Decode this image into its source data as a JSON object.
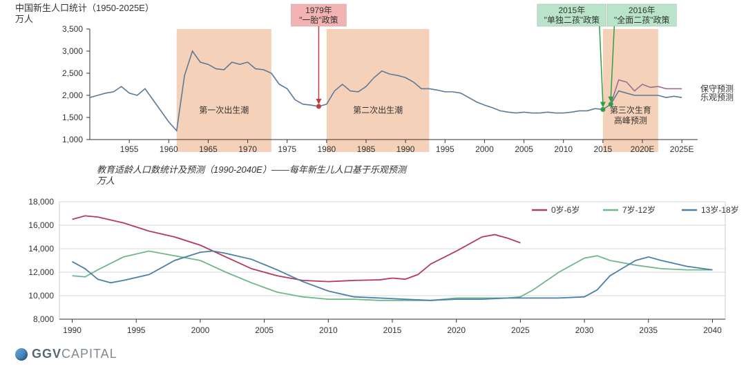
{
  "chart1": {
    "type": "line",
    "title": "中国新生人口统计（1950-2025E）",
    "y_unit": "万人",
    "title_fontsize": 13,
    "label_fontsize": 12,
    "background_color": "#ffffff",
    "axis_color": "#333333",
    "line_color": "#5a7a99",
    "line_width": 1.6,
    "shade_color": "#f3ccb0",
    "shade_opacity": 0.9,
    "xlim": [
      1950,
      2027
    ],
    "ylim": [
      1000,
      3500
    ],
    "xtick_start": 1955,
    "xtick_step": 5,
    "xtick_end": 2025,
    "xtick_suffix_e_from": 2020,
    "ytick_start": 1000,
    "ytick_step": 500,
    "ytick_end": 3500,
    "shaded_periods": [
      {
        "start": 1961,
        "end": 1973,
        "label": "第一次出生潮"
      },
      {
        "start": 1980,
        "end": 1993,
        "label": "第二次出生潮"
      },
      {
        "start": 2015,
        "end": 2022,
        "label": "第三次生育\n高峰预测"
      }
    ],
    "callouts": [
      {
        "year": 1979,
        "label1": "1979年",
        "label2": "\"一胎\"政策",
        "box_color": "#f3b3b3",
        "arrow_color": "#c43c3c",
        "dot_color": "#c43c3c"
      },
      {
        "year": 2015,
        "label1": "2015年",
        "label2": "\"单独二孩\"政策",
        "box_color": "#b9e4c9",
        "arrow_color": "#2f9e44",
        "dot_color": "#2f9e44"
      },
      {
        "year": 2016,
        "label1": "2016年",
        "label2": "\"全面二孩\"政策",
        "box_color": "#b9e4c9",
        "arrow_color": "#2f9e44",
        "dot_color": "#2f9e44"
      }
    ],
    "end_labels": [
      {
        "text": "保守预测",
        "y": 2150
      },
      {
        "text": "乐观预测",
        "y": 1950
      }
    ],
    "series_main": [
      [
        1950,
        1950
      ],
      [
        1951,
        2000
      ],
      [
        1952,
        2050
      ],
      [
        1953,
        2080
      ],
      [
        1954,
        2200
      ],
      [
        1955,
        2050
      ],
      [
        1956,
        2000
      ],
      [
        1957,
        2150
      ],
      [
        1958,
        1900
      ],
      [
        1959,
        1650
      ],
      [
        1960,
        1400
      ],
      [
        1961,
        1200
      ],
      [
        1962,
        2450
      ],
      [
        1963,
        3000
      ],
      [
        1964,
        2750
      ],
      [
        1965,
        2700
      ],
      [
        1966,
        2600
      ],
      [
        1967,
        2580
      ],
      [
        1968,
        2750
      ],
      [
        1969,
        2700
      ],
      [
        1970,
        2750
      ],
      [
        1971,
        2600
      ],
      [
        1972,
        2580
      ],
      [
        1973,
        2500
      ],
      [
        1974,
        2250
      ],
      [
        1975,
        2150
      ],
      [
        1976,
        1900
      ],
      [
        1977,
        1800
      ],
      [
        1978,
        1780
      ],
      [
        1979,
        1750
      ],
      [
        1980,
        1800
      ],
      [
        1981,
        2100
      ],
      [
        1982,
        2250
      ],
      [
        1983,
        2100
      ],
      [
        1984,
        2080
      ],
      [
        1985,
        2200
      ],
      [
        1986,
        2400
      ],
      [
        1987,
        2550
      ],
      [
        1988,
        2480
      ],
      [
        1989,
        2450
      ],
      [
        1990,
        2400
      ],
      [
        1991,
        2300
      ],
      [
        1992,
        2150
      ],
      [
        1993,
        2150
      ],
      [
        1994,
        2120
      ],
      [
        1995,
        2080
      ],
      [
        1996,
        2080
      ],
      [
        1997,
        2050
      ],
      [
        1998,
        1950
      ],
      [
        1999,
        1850
      ],
      [
        2000,
        1780
      ],
      [
        2001,
        1720
      ],
      [
        2002,
        1650
      ],
      [
        2003,
        1620
      ],
      [
        2004,
        1600
      ],
      [
        2005,
        1620
      ],
      [
        2006,
        1600
      ],
      [
        2007,
        1600
      ],
      [
        2008,
        1620
      ],
      [
        2009,
        1600
      ],
      [
        2010,
        1600
      ],
      [
        2011,
        1620
      ],
      [
        2012,
        1650
      ],
      [
        2013,
        1650
      ],
      [
        2014,
        1700
      ],
      [
        2015,
        1680
      ],
      [
        2016,
        1800
      ]
    ],
    "series_conservative": [
      [
        2016,
        1800
      ],
      [
        2017,
        2350
      ],
      [
        2018,
        2300
      ],
      [
        2019,
        2100
      ],
      [
        2020,
        2250
      ],
      [
        2021,
        2180
      ],
      [
        2022,
        2200
      ],
      [
        2023,
        2150
      ],
      [
        2024,
        2150
      ],
      [
        2025,
        2150
      ]
    ],
    "series_optimistic": [
      [
        2016,
        1800
      ],
      [
        2017,
        2100
      ],
      [
        2018,
        2050
      ],
      [
        2019,
        2000
      ],
      [
        2020,
        2000
      ],
      [
        2021,
        2000
      ],
      [
        2022,
        2000
      ],
      [
        2023,
        1950
      ],
      [
        2024,
        1980
      ],
      [
        2025,
        1950
      ]
    ],
    "conservative_color": "#9c6d8f",
    "optimistic_color": "#5a7a99"
  },
  "chart2": {
    "type": "line",
    "title": "教育适龄人口数统计及预测（1990-2040E）——每年新生儿人口基于乐观预测",
    "y_unit": "万人",
    "title_fontsize": 12,
    "label_fontsize": 12,
    "background_color": "#ffffff",
    "axis_color": "#333333",
    "line_width": 1.8,
    "xlim": [
      1989,
      2041
    ],
    "ylim": [
      8000,
      18000
    ],
    "xtick_start": 1990,
    "xtick_step": 5,
    "xtick_end": 2040,
    "ytick_start": 8000,
    "ytick_step": 2000,
    "ytick_end": 18000,
    "grid_color": "#c7cdd2",
    "legend_items": [
      {
        "name": "0岁-6岁",
        "color": "#b43a5a"
      },
      {
        "name": "7岁-12岁",
        "color": "#6fb78a"
      },
      {
        "name": "13岁-18岁",
        "color": "#4a7fa6"
      }
    ],
    "series": {
      "0_6": {
        "color": "#b43a5a",
        "points": [
          [
            1990,
            16500
          ],
          [
            1991,
            16800
          ],
          [
            1992,
            16700
          ],
          [
            1994,
            16200
          ],
          [
            1996,
            15500
          ],
          [
            1998,
            15000
          ],
          [
            2000,
            14300
          ],
          [
            2002,
            13300
          ],
          [
            2004,
            12300
          ],
          [
            2006,
            11700
          ],
          [
            2008,
            11300
          ],
          [
            2010,
            11200
          ],
          [
            2012,
            11300
          ],
          [
            2014,
            11350
          ],
          [
            2015,
            11500
          ],
          [
            2016,
            11400
          ],
          [
            2017,
            11800
          ],
          [
            2018,
            12700
          ],
          [
            2020,
            13800
          ],
          [
            2022,
            15000
          ],
          [
            2023,
            15200
          ],
          [
            2024,
            14900
          ],
          [
            2025,
            14500
          ]
        ]
      },
      "7_12": {
        "color": "#6fb78a",
        "points": [
          [
            1990,
            11700
          ],
          [
            1991,
            11600
          ],
          [
            1992,
            12200
          ],
          [
            1994,
            13300
          ],
          [
            1996,
            13800
          ],
          [
            1998,
            13400
          ],
          [
            2000,
            13000
          ],
          [
            2002,
            12000
          ],
          [
            2004,
            11100
          ],
          [
            2006,
            10300
          ],
          [
            2008,
            9900
          ],
          [
            2010,
            9700
          ],
          [
            2012,
            9700
          ],
          [
            2014,
            9600
          ],
          [
            2016,
            9600
          ],
          [
            2018,
            9600
          ],
          [
            2020,
            9800
          ],
          [
            2022,
            9800
          ],
          [
            2024,
            9800
          ],
          [
            2025,
            9900
          ],
          [
            2026,
            10500
          ],
          [
            2028,
            12000
          ],
          [
            2030,
            13200
          ],
          [
            2031,
            13400
          ],
          [
            2032,
            13000
          ],
          [
            2034,
            12600
          ],
          [
            2036,
            12300
          ],
          [
            2038,
            12200
          ],
          [
            2040,
            12200
          ]
        ]
      },
      "13_18": {
        "color": "#4a7fa6",
        "points": [
          [
            1990,
            12900
          ],
          [
            1991,
            12300
          ],
          [
            1992,
            11400
          ],
          [
            1993,
            11100
          ],
          [
            1994,
            11300
          ],
          [
            1996,
            11800
          ],
          [
            1998,
            13000
          ],
          [
            2000,
            13700
          ],
          [
            2001,
            13800
          ],
          [
            2002,
            13600
          ],
          [
            2004,
            13100
          ],
          [
            2006,
            12200
          ],
          [
            2008,
            11200
          ],
          [
            2010,
            10400
          ],
          [
            2012,
            9900
          ],
          [
            2014,
            9800
          ],
          [
            2016,
            9700
          ],
          [
            2018,
            9600
          ],
          [
            2020,
            9700
          ],
          [
            2022,
            9700
          ],
          [
            2024,
            9800
          ],
          [
            2026,
            9800
          ],
          [
            2028,
            9800
          ],
          [
            2030,
            9900
          ],
          [
            2031,
            10500
          ],
          [
            2032,
            11700
          ],
          [
            2034,
            13000
          ],
          [
            2035,
            13300
          ],
          [
            2036,
            13000
          ],
          [
            2038,
            12500
          ],
          [
            2040,
            12200
          ]
        ]
      }
    }
  },
  "footer": {
    "brand_bold": "GGV",
    "brand_light": "CAPITAL"
  }
}
